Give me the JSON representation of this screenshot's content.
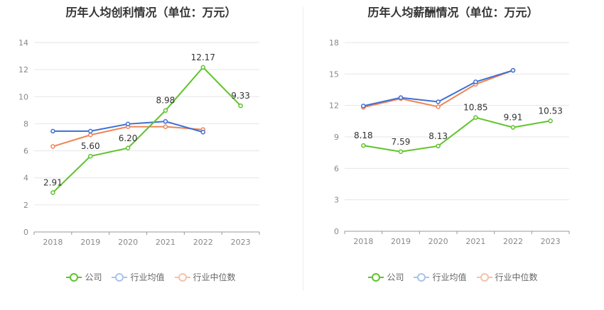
{
  "chart_data": [
    {
      "type": "line",
      "title": "历年人均创利情况（单位：万元）",
      "categories": [
        "2018",
        "2019",
        "2020",
        "2021",
        "2022",
        "2023"
      ],
      "ylim": [
        0,
        14
      ],
      "yticks": [
        0,
        2,
        4,
        6,
        8,
        10,
        12,
        14
      ],
      "grid": true,
      "legend_position": "bottom",
      "series": [
        {
          "name": "公司",
          "color": "#5ec42b",
          "values": [
            2.91,
            5.6,
            6.2,
            8.98,
            12.17,
            9.33
          ],
          "labels": [
            "2.91",
            "5.60",
            "6.20",
            "8.98",
            "12.17",
            "9.33"
          ]
        },
        {
          "name": "行业均值",
          "color": "#3d6fd4",
          "values": [
            7.45,
            7.45,
            7.98,
            8.17,
            7.38,
            null
          ]
        },
        {
          "name": "行业中位数",
          "color": "#ef8456",
          "values": [
            6.32,
            7.17,
            7.78,
            7.78,
            7.57,
            null
          ]
        }
      ]
    },
    {
      "type": "line",
      "title": "历年人均薪酬情况（单位：万元）",
      "categories": [
        "2018",
        "2019",
        "2020",
        "2021",
        "2022",
        "2023"
      ],
      "ylim": [
        0,
        18
      ],
      "yticks": [
        0,
        3,
        6,
        9,
        12,
        15,
        18
      ],
      "grid": true,
      "legend_position": "bottom",
      "series": [
        {
          "name": "公司",
          "color": "#5ec42b",
          "values": [
            8.18,
            7.59,
            8.13,
            10.85,
            9.91,
            10.53
          ],
          "labels": [
            "8.18",
            "7.59",
            "8.13",
            "10.85",
            "9.91",
            "10.53"
          ]
        },
        {
          "name": "行业均值",
          "color": "#3d6fd4",
          "values": [
            11.95,
            12.75,
            12.35,
            14.25,
            15.35,
            null
          ]
        },
        {
          "name": "行业中位数",
          "color": "#ef8456",
          "values": [
            11.82,
            12.65,
            11.88,
            14.02,
            15.35,
            null
          ]
        }
      ]
    }
  ]
}
